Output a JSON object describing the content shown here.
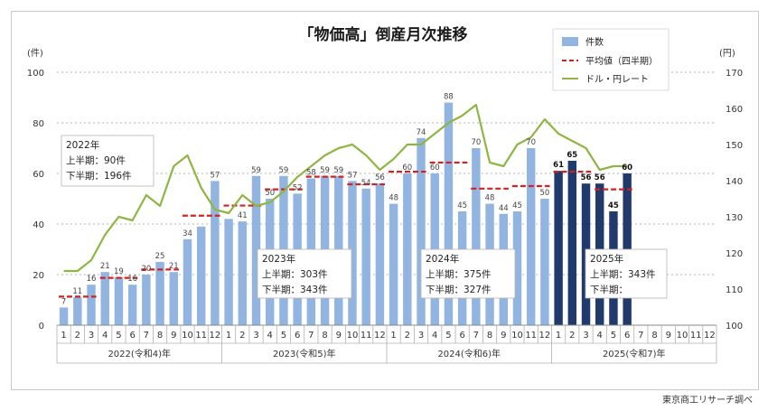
{
  "chart_data": {
    "type": "bar",
    "title": "「物価高」倒産月次推移",
    "y_left_unit": "(件)",
    "y_right_unit": "(円)",
    "ylim_left": [
      0,
      100
    ],
    "yticks_left": [
      0,
      20,
      40,
      60,
      80,
      100
    ],
    "ylim_right": [
      100,
      170
    ],
    "yticks_right": [
      100,
      110,
      120,
      130,
      140,
      150,
      160,
      170
    ],
    "month_ticks": [
      "1",
      "2",
      "3",
      "4",
      "5",
      "6",
      "7",
      "8",
      "9",
      "10",
      "11",
      "12"
    ],
    "year_groups": [
      "2022(令和4)年",
      "2023(令和5)年",
      "2024(令和6)年",
      "2025(令和7)年"
    ],
    "legend": [
      "件数",
      "平均値（四半期）",
      "ドル・円レート"
    ],
    "source": "東京商工リサーチ調べ",
    "series": [
      {
        "name": "件数",
        "values": [
          7,
          11,
          16,
          21,
          19,
          16,
          20,
          25,
          21,
          34,
          39,
          57,
          42,
          41,
          59,
          50,
          59,
          52,
          58,
          59,
          59,
          57,
          54,
          56,
          48,
          60,
          74,
          60,
          88,
          45,
          70,
          48,
          44,
          45,
          70,
          50,
          61,
          65,
          56,
          56,
          45,
          60
        ],
        "value_labels": [
          "7",
          "11",
          "16",
          "21",
          "19",
          "16",
          "20",
          "25",
          "21",
          "34",
          "",
          "57",
          "",
          "41",
          "59",
          "50",
          "59",
          "52",
          "58",
          "59",
          "59",
          "57",
          "54",
          "56",
          "48",
          "60",
          "74",
          "60",
          "88",
          "45",
          "70",
          "48",
          "44",
          "45",
          "70",
          "50",
          "61",
          "65",
          "56",
          "56",
          "45",
          "60"
        ],
        "highlight_from_index": 36
      },
      {
        "name": "平均値（四半期）",
        "values": [
          11.3,
          18.7,
          22.0,
          43.3,
          47.3,
          53.7,
          58.7,
          55.7,
          60.7,
          64.3,
          54.0,
          55.0,
          60.7,
          53.7
        ]
      },
      {
        "name": "ドル・円レート",
        "values": [
          115.0,
          115.0,
          118.0,
          125.0,
          130.0,
          129.0,
          136.0,
          133.0,
          144.0,
          147.0,
          138.0,
          132.0,
          131.0,
          136.0,
          133.0,
          134.0,
          137.0,
          141.0,
          144.0,
          147.0,
          149.0,
          150.0,
          147.0,
          143.0,
          146.0,
          150.0,
          150.0,
          153.0,
          156.0,
          158.0,
          161.0,
          145.0,
          144.0,
          150.0,
          152.0,
          157.0,
          153.0,
          151.0,
          149.0,
          143.0,
          144.0,
          144.0
        ]
      }
    ],
    "annotations": [
      {
        "title": "2022年",
        "lines": [
          "上半期：90件",
          "下半期：196件"
        ]
      },
      {
        "title": "2023年",
        "lines": [
          "上半期：303件",
          "下半期：343件"
        ]
      },
      {
        "title": "2024年",
        "lines": [
          "上半期：375件",
          "下半期：327件"
        ]
      },
      {
        "title": "2025年",
        "lines": [
          "上半期：343件",
          "下半期："
        ]
      }
    ]
  }
}
